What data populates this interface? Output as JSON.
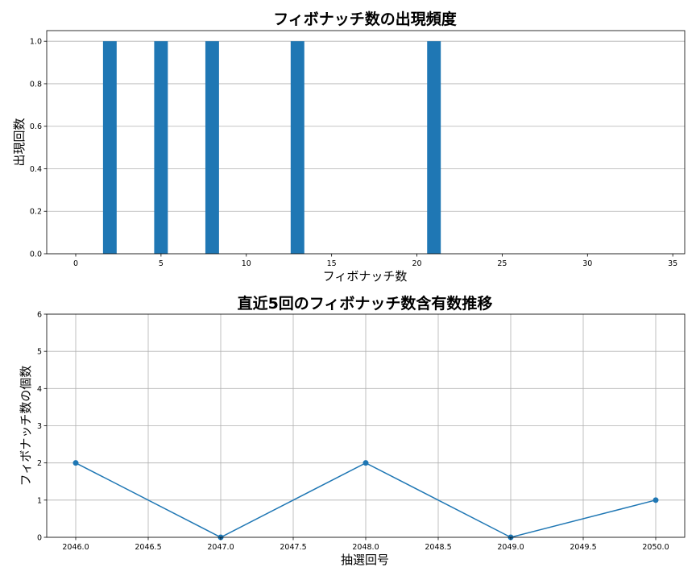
{
  "chart_data": [
    {
      "type": "bar",
      "title": "フィボナッチ数の出現頻度",
      "xlabel": "フィボナッチ数",
      "ylabel": "出現回数",
      "xlim": [
        -1.7,
        35.7
      ],
      "ylim": [
        0,
        1.05
      ],
      "xticks": [
        "0",
        "5",
        "10",
        "15",
        "20",
        "25",
        "30",
        "35"
      ],
      "yticks": [
        "0.0",
        "0.2",
        "0.4",
        "0.6",
        "0.8",
        "1.0"
      ],
      "grid": "y",
      "bar_color": "#1f77b4",
      "x": [
        2,
        5,
        8,
        13,
        21
      ],
      "values": [
        1,
        1,
        1,
        1,
        1
      ]
    },
    {
      "type": "line",
      "title": "直近5回のフィボナッチ数含有数推移",
      "xlabel": "抽選回号",
      "ylabel": "フィボナッチ数の個数",
      "xlim": [
        2045.8,
        2050.2
      ],
      "ylim": [
        0,
        6
      ],
      "xticks": [
        "2046.0",
        "2046.5",
        "2047.0",
        "2047.5",
        "2048.0",
        "2048.5",
        "2049.0",
        "2049.5",
        "2050.0"
      ],
      "yticks": [
        "0",
        "1",
        "2",
        "3",
        "4",
        "5",
        "6"
      ],
      "grid": "both",
      "line_color": "#1f77b4",
      "marker": "circle",
      "x": [
        2046,
        2047,
        2048,
        2049,
        2050
      ],
      "y": [
        2,
        0,
        2,
        0,
        1
      ]
    }
  ]
}
